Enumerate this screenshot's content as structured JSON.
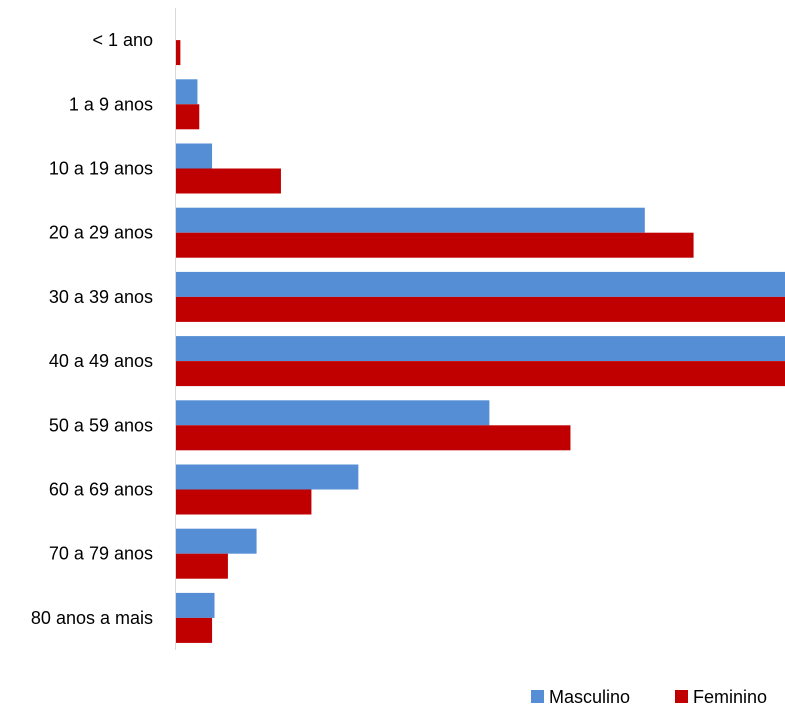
{
  "chart_data": {
    "type": "bar",
    "orientation": "horizontal",
    "categories": [
      "< 1 ano",
      "1 a 9 anos",
      "10 a 19 anos",
      "20 a 29 anos",
      "30 a 39 anos",
      "40 a 49 anos",
      "50 a 59 anos",
      "60 a 69 anos",
      "70 a 79 anos",
      "80 anos a mais"
    ],
    "series": [
      {
        "name": "Masculino",
        "color": "#558ED5",
        "values": [
          0,
          3.6,
          6,
          77,
          100,
          100,
          51.5,
          30,
          13.3,
          6.4
        ]
      },
      {
        "name": "Feminino",
        "color": "#C00000",
        "values": [
          0.8,
          3.9,
          17.3,
          85,
          100,
          100,
          64.8,
          22.3,
          8.6,
          6
        ]
      }
    ],
    "xlim": [
      0,
      100
    ],
    "grid": false,
    "legend": "bottom-right"
  }
}
